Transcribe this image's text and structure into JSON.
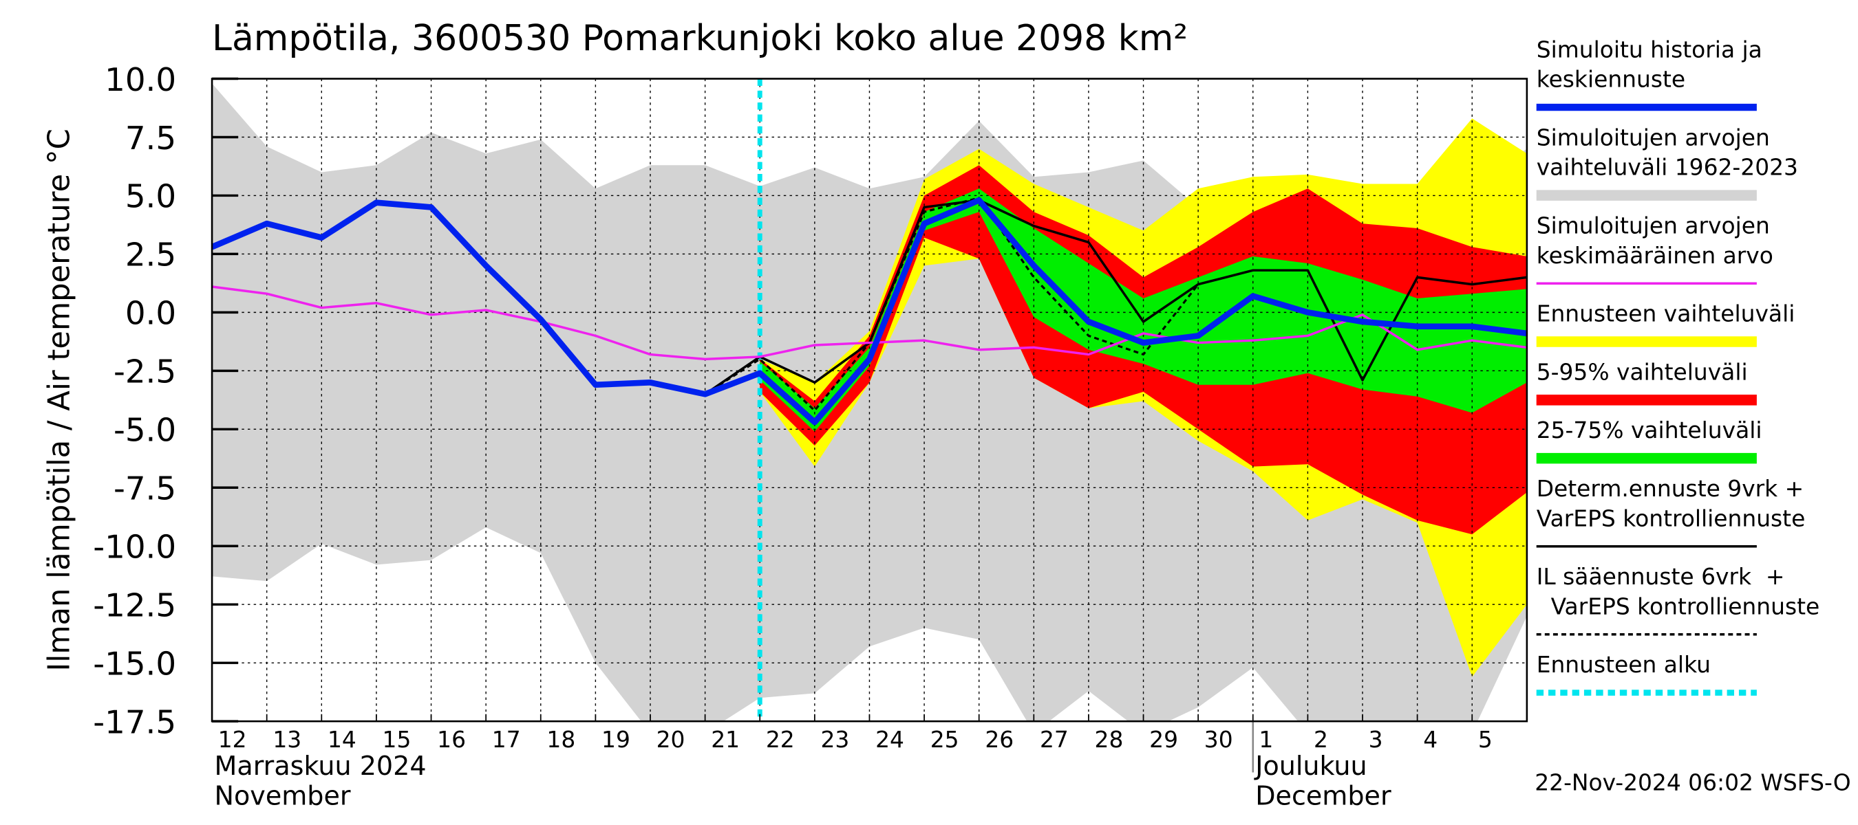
{
  "chart_data": {
    "type": "band-line",
    "title": "Lämpötila, 3600530 Pomarkunjoki koko alue 2098 km²",
    "y_label": "Ilman lämpötila / Air temperature   °C",
    "timestamp": "22-Nov-2024 06:02 WSFS-O",
    "categories": [
      "12",
      "13",
      "14",
      "15",
      "16",
      "17",
      "18",
      "19",
      "20",
      "21",
      "22",
      "23",
      "24",
      "25",
      "26",
      "27",
      "28",
      "29",
      "30",
      "1",
      "2",
      "3",
      "4",
      "5",
      null
    ],
    "months": [
      {
        "label": "Marraskuu 2024",
        "label_en": "November",
        "start": "12"
      },
      {
        "label": "Joulukuu",
        "label_en": "December",
        "start": "1"
      }
    ],
    "ylim": [
      -17.5,
      10.0
    ],
    "yticks": [
      {
        "value": 10.0,
        "label": "10.0"
      },
      7.5,
      {
        "value": 5.0,
        "label": "5.0"
      },
      2.5,
      {
        "value": 0.0,
        "label": "0.0"
      },
      -2.5,
      {
        "value": -5.0,
        "label": "-5.0"
      },
      -7.5,
      {
        "value": -10.0,
        "label": "-10.0"
      },
      -12.5,
      {
        "value": -15.0,
        "label": "-15.0"
      },
      -17.5
    ],
    "grid": true,
    "series": [
      {
        "name": "Simuloitu historia ja\nkeskiennuste",
        "color": "#0022ee",
        "style": "thick-line",
        "values": [
          2.8,
          3.8,
          3.2,
          4.7,
          4.5,
          2.0,
          -0.3,
          -3.1,
          -3.0,
          -3.5,
          -2.6,
          -4.7,
          -2.0,
          3.8,
          4.8,
          2.0,
          -0.4,
          -1.3,
          -1.0,
          0.7,
          0.0,
          -0.4,
          -0.6,
          -0.6,
          -0.9
        ]
      },
      {
        "name": "Simuloitujen arvojen\nvaihteluväli 1962-2023",
        "color": "#d3d3d3",
        "style": "band",
        "high": [
          9.8,
          7.1,
          6.0,
          6.3,
          7.7,
          6.8,
          7.4,
          5.3,
          6.3,
          6.3,
          5.4,
          6.2,
          5.3,
          5.8,
          8.2,
          5.8,
          6.0,
          6.5,
          4.5,
          4.3,
          4.5,
          5.5,
          5.3,
          5.5,
          7.0
        ],
        "low": [
          -11.3,
          -11.5,
          -9.9,
          -10.8,
          -10.6,
          -9.2,
          -10.3,
          -15.0,
          -18.0,
          -18.0,
          -16.5,
          -16.3,
          -14.3,
          -13.5,
          -14.0,
          -18.0,
          -16.2,
          -18.0,
          -16.9,
          -15.2,
          -18.0,
          -18.0,
          -18.0,
          -18.0,
          -13.0
        ]
      },
      {
        "name": "Simuloitujen arvojen\nkeskimääräinen arvo",
        "color": "#ee22ee",
        "style": "line",
        "values": [
          1.1,
          0.8,
          0.2,
          0.4,
          -0.1,
          0.1,
          -0.4,
          -1.0,
          -1.8,
          -2.0,
          -1.9,
          -1.4,
          -1.3,
          -1.2,
          -1.6,
          -1.5,
          -1.8,
          -0.9,
          -1.3,
          -1.2,
          -1.0,
          -0.1,
          -1.6,
          -1.2,
          -1.5
        ]
      },
      {
        "name": "Ennusteen vaihteluväli",
        "color": "#ffff00",
        "style": "band",
        "high": [
          null,
          null,
          null,
          null,
          null,
          null,
          null,
          null,
          null,
          null,
          -2.0,
          -3.0,
          -0.8,
          5.7,
          7.0,
          5.5,
          4.5,
          3.5,
          5.3,
          5.8,
          5.9,
          5.5,
          5.5,
          8.3,
          6.8
        ],
        "low": [
          null,
          null,
          null,
          null,
          null,
          null,
          null,
          null,
          null,
          null,
          -3.4,
          -6.6,
          -3.0,
          2.0,
          2.3,
          -2.8,
          -4.1,
          -3.8,
          -5.5,
          -6.8,
          -8.9,
          -8.0,
          -9.0,
          -15.6,
          -12.5
        ]
      },
      {
        "name": "5-95% vaihteluväli",
        "color": "#ff0000",
        "style": "band",
        "high": [
          null,
          null,
          null,
          null,
          null,
          null,
          null,
          null,
          null,
          null,
          -2.0,
          -3.8,
          -1.0,
          5.0,
          6.3,
          4.3,
          3.3,
          1.5,
          2.8,
          4.3,
          5.3,
          3.8,
          3.6,
          2.8,
          2.4
        ],
        "low": [
          null,
          null,
          null,
          null,
          null,
          null,
          null,
          null,
          null,
          null,
          -3.4,
          -5.7,
          -3.0,
          3.2,
          2.3,
          -2.8,
          -4.1,
          -3.4,
          -5.0,
          -6.6,
          -6.5,
          -7.8,
          -8.9,
          -9.5,
          -7.7
        ]
      },
      {
        "name": "25-75% vaihteluväli",
        "color": "#00ee00",
        "style": "band",
        "high": [
          null,
          null,
          null,
          null,
          null,
          null,
          null,
          null,
          null,
          null,
          -2.1,
          -4.1,
          -1.5,
          4.3,
          5.3,
          3.6,
          2.1,
          0.6,
          1.5,
          2.4,
          2.1,
          1.4,
          0.6,
          0.8,
          1.0
        ],
        "low": [
          null,
          null,
          null,
          null,
          null,
          null,
          null,
          null,
          null,
          null,
          -2.9,
          -5.1,
          -2.3,
          3.5,
          4.3,
          -0.2,
          -1.6,
          -2.2,
          -3.1,
          -3.1,
          -2.6,
          -3.3,
          -3.6,
          -4.3,
          -3.0
        ]
      },
      {
        "name": "Determ.ennuste 9vrk +\nVarEPS kontrolliennuste",
        "color": "#000000",
        "style": "line",
        "values": [
          null,
          null,
          null,
          null,
          null,
          null,
          null,
          null,
          null,
          -3.5,
          -1.9,
          -3.0,
          -1.3,
          4.5,
          4.8,
          3.7,
          3.0,
          -0.4,
          1.2,
          1.8,
          1.8,
          -2.9,
          1.5,
          1.2,
          1.5
        ]
      },
      {
        "name": "IL sääennuste 6vrk  +\n  VarEPS kontrolliennuste",
        "color": "#000000",
        "style": "dashed",
        "values": [
          null,
          null,
          null,
          null,
          null,
          null,
          null,
          null,
          null,
          -3.5,
          -2.0,
          -4.2,
          -1.3,
          4.3,
          4.9,
          1.5,
          -1.0,
          -1.8,
          1.2,
          null,
          null,
          null,
          null,
          null,
          null
        ]
      },
      {
        "name": "Ennusteen alku",
        "color": "#00e5ee",
        "style": "vline",
        "at": "22"
      }
    ]
  }
}
